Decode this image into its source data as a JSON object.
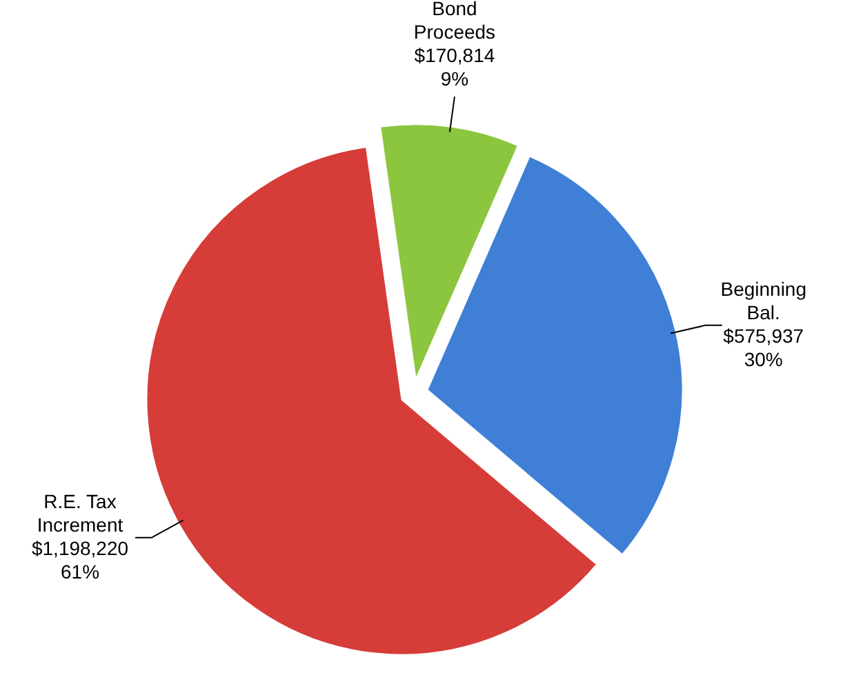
{
  "chart_data": {
    "type": "pie",
    "categories": [
      "Bond Proceeds",
      "Beginning Bal.",
      "R.E. Tax Increment"
    ],
    "values": [
      170814,
      575937,
      1198220
    ],
    "value_labels": [
      "$170,814\n9%",
      "$575,937\n30%",
      "$1,198,220\n61%"
    ],
    "colors": [
      "#8cc63f",
      "#3f7fd6",
      "#d63c38"
    ]
  }
}
